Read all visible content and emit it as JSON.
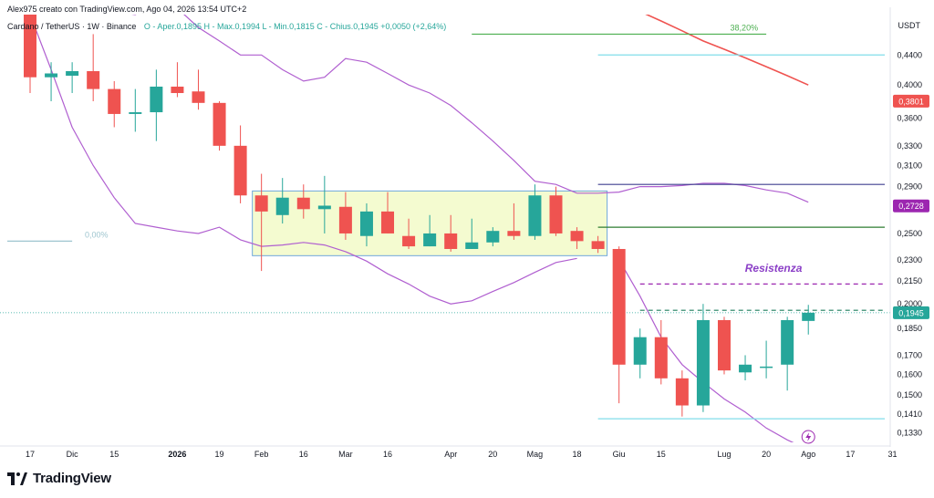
{
  "header": {
    "author_line": "Alex975 creato con TradingView.com, Ago 04, 2026 13:54 UTC+2",
    "symbol_line": "Cardano / TetherUS · 1W · Binance",
    "ohlc": "O - Aper.0,1895  H - Max.0,1994  L - Min.0,1815  C - Chius.0,1945  +0,0050 (+2,64%)"
  },
  "brand": {
    "logo_icon": "tradingview-logo-icon",
    "name": "TradingView"
  },
  "chart_data": {
    "type": "candlestick",
    "currency": "USDT",
    "y_scale": "log",
    "ylim": [
      0.129,
      0.5
    ],
    "y_ticks": [
      0.44,
      0.4,
      0.36,
      0.33,
      0.31,
      0.29,
      0.25,
      0.23,
      0.215,
      0.2,
      0.185,
      0.17,
      0.16,
      0.15,
      0.141,
      0.133
    ],
    "y_tick_labels": [
      "0,4400",
      "0,4000",
      "0,3600",
      "0,3300",
      "0,3100",
      "0,2900",
      "0,2500",
      "0,2300",
      "0,2150",
      "0,2000",
      "0,1850",
      "0,1700",
      "0,1600",
      "0,1500",
      "0,1410",
      "0,1330"
    ],
    "x_labels": [
      {
        "i": 0,
        "text": "17"
      },
      {
        "i": 2,
        "text": "Dic"
      },
      {
        "i": 4,
        "text": "15"
      },
      {
        "i": 7,
        "text": "2026",
        "bold": true
      },
      {
        "i": 9,
        "text": "19"
      },
      {
        "i": 11,
        "text": "Feb"
      },
      {
        "i": 13,
        "text": "16"
      },
      {
        "i": 15,
        "text": "Mar"
      },
      {
        "i": 17,
        "text": "16"
      },
      {
        "i": 20,
        "text": "Apr"
      },
      {
        "i": 22,
        "text": "20"
      },
      {
        "i": 24,
        "text": "Mag"
      },
      {
        "i": 26,
        "text": "18"
      },
      {
        "i": 28,
        "text": "Giu"
      },
      {
        "i": 30,
        "text": "15"
      },
      {
        "i": 33,
        "text": "Lug"
      },
      {
        "i": 35,
        "text": "20"
      },
      {
        "i": 37,
        "text": "Ago"
      },
      {
        "i": 39,
        "text": "17"
      },
      {
        "i": 41,
        "text": "31"
      }
    ],
    "candles": [
      {
        "o": 0.5,
        "h": 0.5,
        "l": 0.39,
        "c": 0.41
      },
      {
        "o": 0.41,
        "h": 0.43,
        "l": 0.38,
        "c": 0.415
      },
      {
        "o": 0.412,
        "h": 0.43,
        "l": 0.39,
        "c": 0.418
      },
      {
        "o": 0.418,
        "h": 0.47,
        "l": 0.38,
        "c": 0.395
      },
      {
        "o": 0.395,
        "h": 0.405,
        "l": 0.35,
        "c": 0.365
      },
      {
        "o": 0.365,
        "h": 0.395,
        "l": 0.345,
        "c": 0.367
      },
      {
        "o": 0.367,
        "h": 0.42,
        "l": 0.335,
        "c": 0.398
      },
      {
        "o": 0.398,
        "h": 0.43,
        "l": 0.385,
        "c": 0.39
      },
      {
        "o": 0.392,
        "h": 0.42,
        "l": 0.37,
        "c": 0.378
      },
      {
        "o": 0.378,
        "h": 0.38,
        "l": 0.325,
        "c": 0.33
      },
      {
        "o": 0.33,
        "h": 0.352,
        "l": 0.275,
        "c": 0.282
      },
      {
        "o": 0.282,
        "h": 0.302,
        "l": 0.222,
        "c": 0.268
      },
      {
        "o": 0.265,
        "h": 0.298,
        "l": 0.258,
        "c": 0.28
      },
      {
        "o": 0.28,
        "h": 0.292,
        "l": 0.262,
        "c": 0.27
      },
      {
        "o": 0.27,
        "h": 0.3,
        "l": 0.25,
        "c": 0.273
      },
      {
        "o": 0.272,
        "h": 0.285,
        "l": 0.245,
        "c": 0.25
      },
      {
        "o": 0.248,
        "h": 0.275,
        "l": 0.24,
        "c": 0.268
      },
      {
        "o": 0.268,
        "h": 0.285,
        "l": 0.25,
        "c": 0.25
      },
      {
        "o": 0.248,
        "h": 0.262,
        "l": 0.238,
        "c": 0.24
      },
      {
        "o": 0.24,
        "h": 0.265,
        "l": 0.24,
        "c": 0.25
      },
      {
        "o": 0.25,
        "h": 0.265,
        "l": 0.236,
        "c": 0.238
      },
      {
        "o": 0.238,
        "h": 0.262,
        "l": 0.238,
        "c": 0.243
      },
      {
        "o": 0.243,
        "h": 0.255,
        "l": 0.24,
        "c": 0.252
      },
      {
        "o": 0.252,
        "h": 0.275,
        "l": 0.245,
        "c": 0.248
      },
      {
        "o": 0.248,
        "h": 0.292,
        "l": 0.245,
        "c": 0.282
      },
      {
        "o": 0.282,
        "h": 0.29,
        "l": 0.248,
        "c": 0.25
      },
      {
        "o": 0.252,
        "h": 0.255,
        "l": 0.238,
        "c": 0.244
      },
      {
        "o": 0.244,
        "h": 0.248,
        "l": 0.235,
        "c": 0.238
      },
      {
        "o": 0.238,
        "h": 0.24,
        "l": 0.146,
        "c": 0.165
      },
      {
        "o": 0.165,
        "h": 0.185,
        "l": 0.158,
        "c": 0.18
      },
      {
        "o": 0.18,
        "h": 0.19,
        "l": 0.155,
        "c": 0.158
      },
      {
        "o": 0.158,
        "h": 0.162,
        "l": 0.14,
        "c": 0.145
      },
      {
        "o": 0.145,
        "h": 0.2,
        "l": 0.142,
        "c": 0.19
      },
      {
        "o": 0.19,
        "h": 0.192,
        "l": 0.16,
        "c": 0.162
      },
      {
        "o": 0.161,
        "h": 0.17,
        "l": 0.157,
        "c": 0.165
      },
      {
        "o": 0.164,
        "h": 0.178,
        "l": 0.158,
        "c": 0.164
      },
      {
        "o": 0.165,
        "h": 0.192,
        "l": 0.152,
        "c": 0.19
      },
      {
        "o": 0.1895,
        "h": 0.1994,
        "l": 0.1815,
        "c": 0.1945
      }
    ],
    "bollinger_upper": {
      "from_i": 28,
      "to_i": 37,
      "values": [
        0.52,
        0.505,
        0.49,
        0.475,
        0.46,
        0.448,
        0.436,
        0.424,
        0.412,
        0.4
      ]
    },
    "bollinger_mid": {
      "from_i": 26,
      "to_i": 37,
      "values": [
        0.284,
        0.284,
        0.285,
        0.29,
        0.29,
        0.291,
        0.293,
        0.293,
        0.291,
        0.287,
        0.284,
        0.276
      ]
    },
    "bollinger_lower": {
      "from_i": 28,
      "to_i": 37,
      "values": [
        0.23,
        0.205,
        0.18,
        0.165,
        0.156,
        0.148,
        0.142,
        0.135,
        0.13,
        0.126
      ]
    },
    "purple_envelope_upper": [
      0.66,
      0.6,
      0.56,
      0.52,
      0.505,
      0.5,
      0.52,
      0.51,
      0.48,
      0.46,
      0.44,
      0.44,
      0.42,
      0.405,
      0.41,
      0.435,
      0.43,
      0.415,
      0.4,
      0.39,
      0.375,
      0.355,
      0.335,
      0.315,
      0.295,
      0.292,
      0.284
    ],
    "purple_envelope_lower": [
      0.5,
      0.42,
      0.35,
      0.31,
      0.28,
      0.258,
      0.255,
      0.252,
      0.25,
      0.255,
      0.245,
      0.24,
      0.241,
      0.243,
      0.241,
      0.236,
      0.229,
      0.22,
      0.213,
      0.205,
      0.2,
      0.202,
      0.208,
      0.214,
      0.221,
      0.228,
      0.231
    ],
    "range_box": {
      "from_i": 11,
      "to_i": 27,
      "top": 0.286,
      "bottom": 0.233
    },
    "levels": [
      {
        "name": "fib-38.2",
        "value": 0.47,
        "label": "38,20%",
        "color": "#4caf50",
        "from_i": 21,
        "to_i": 35
      },
      {
        "name": "light-blue-top",
        "value": 0.44,
        "color": "#80deea",
        "from_i": 27,
        "to_i": 41
      },
      {
        "name": "dark-blue",
        "value": 0.292,
        "color": "#3f3f8f",
        "from_i": 27,
        "to_i": 41
      },
      {
        "name": "green-support",
        "value": 0.255,
        "color": "#2e7d32",
        "from_i": 27,
        "to_i": 41
      },
      {
        "name": "fib-0",
        "value": 0.244,
        "label": "0,00%",
        "color": "#9ec5cf",
        "from_i": 0,
        "to_i": 2
      },
      {
        "name": "resistance",
        "value": 0.213,
        "color": "#9c27b0",
        "dashed": true,
        "from_i": 29,
        "to_i": 41
      },
      {
        "name": "current-green",
        "value": 0.196,
        "color": "#1e7d5c",
        "dashed": true,
        "from_i": 29,
        "to_i": 41
      },
      {
        "name": "light-blue-bottom",
        "value": 0.139,
        "color": "#80deea",
        "from_i": 27,
        "to_i": 41
      }
    ],
    "dotted_price_line": 0.1945,
    "annotations": [
      {
        "text": "Resistenza",
        "value": 0.22,
        "i": 35,
        "color": "#8b3fc7"
      }
    ],
    "price_badges": [
      {
        "text": "0,3801",
        "value": 0.3801,
        "color": "#ef5350"
      },
      {
        "text": "0,2728",
        "value": 0.2728,
        "color": "#9c27b0"
      },
      {
        "text": "0,1945",
        "value": 0.1945,
        "color": "#26a69a"
      }
    ],
    "colors": {
      "up": "#26a69a",
      "down": "#ef5350",
      "purple": "#b05fd0",
      "red_ma": "#ef5350",
      "box_fill": "#f4fbd0",
      "box_stroke": "#6fa8dc"
    },
    "grid": false
  }
}
